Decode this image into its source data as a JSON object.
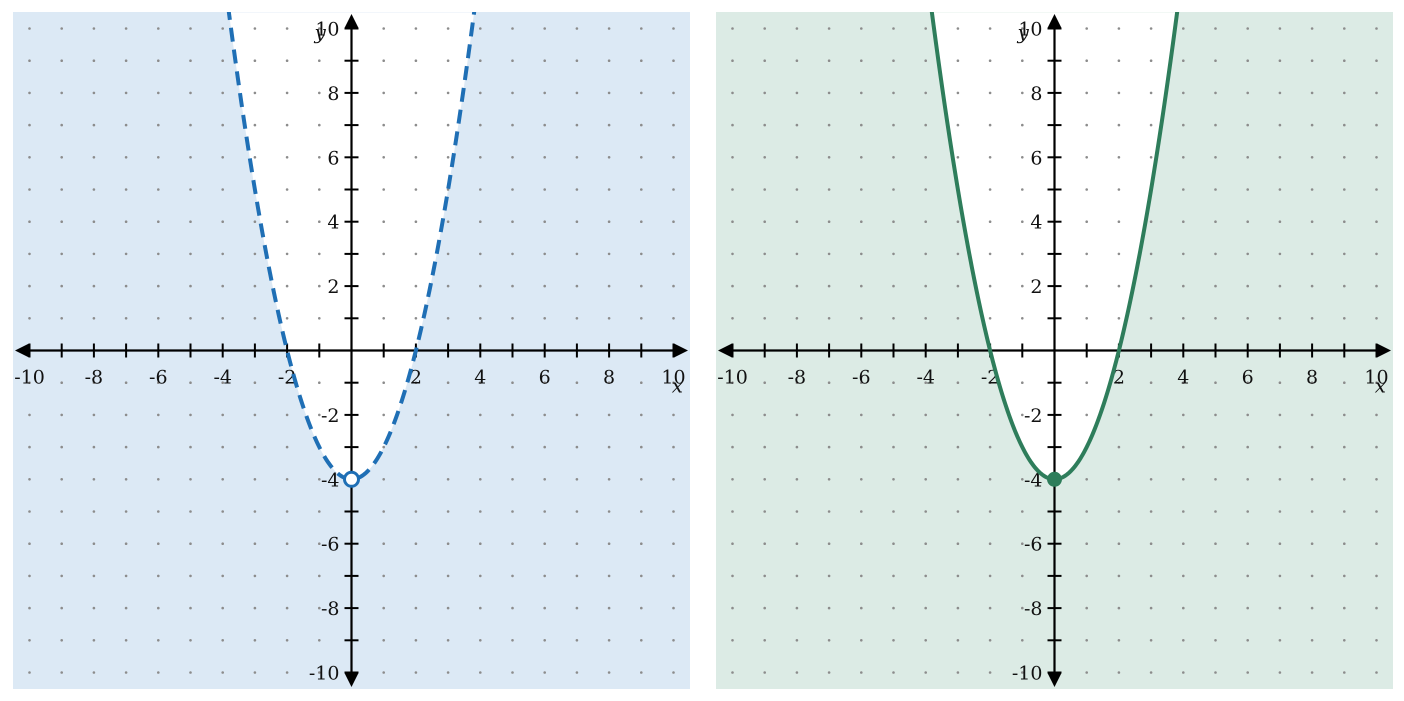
{
  "chart_data": [
    {
      "type": "line",
      "xlabel": "x",
      "ylabel": "y",
      "xlim": [
        -10.5,
        10.5
      ],
      "ylim": [
        -10.5,
        10.5
      ],
      "x_ticks": [
        -10,
        -8,
        -6,
        -4,
        -2,
        2,
        4,
        6,
        8,
        10
      ],
      "y_ticks": [
        -10,
        -8,
        -6,
        -4,
        -2,
        2,
        4,
        6,
        8,
        10
      ],
      "grid": "dots",
      "series": [
        {
          "function": "y = x^2 - 4",
          "line_style": "dashed",
          "color": "#1f6fb5",
          "x": [
            -3.8,
            -3.5,
            -3,
            -2.5,
            -2,
            -1.5,
            -1,
            -0.5,
            0,
            0.5,
            1,
            1.5,
            2,
            2.5,
            3,
            3.5,
            3.8
          ],
          "y": [
            10.44,
            8.25,
            5,
            2.25,
            0,
            -1.75,
            -3,
            -3.75,
            -4,
            -3.75,
            -3,
            -1.75,
            0,
            2.25,
            5,
            8.25,
            10.44
          ]
        }
      ],
      "vertex": {
        "x": 0,
        "y": -4,
        "marker": "open-circle"
      },
      "shaded_region": "outside",
      "shade_color": "#dce9f5"
    },
    {
      "type": "line",
      "xlabel": "x",
      "ylabel": "y",
      "xlim": [
        -10.5,
        10.5
      ],
      "ylim": [
        -10.5,
        10.5
      ],
      "x_ticks": [
        -10,
        -8,
        -6,
        -4,
        -2,
        2,
        4,
        6,
        8,
        10
      ],
      "y_ticks": [
        -10,
        -8,
        -6,
        -4,
        -2,
        2,
        4,
        6,
        8,
        10
      ],
      "grid": "dots",
      "series": [
        {
          "function": "y = x^2 - 4",
          "line_style": "solid",
          "color": "#2e7d5b",
          "x": [
            -3.8,
            -3.5,
            -3,
            -2.5,
            -2,
            -1.5,
            -1,
            -0.5,
            0,
            0.5,
            1,
            1.5,
            2,
            2.5,
            3,
            3.5,
            3.8
          ],
          "y": [
            10.44,
            8.25,
            5,
            2.25,
            0,
            -1.75,
            -3,
            -3.75,
            -4,
            -3.75,
            -3,
            -1.75,
            0,
            2.25,
            5,
            8.25,
            10.44
          ]
        }
      ],
      "vertex": {
        "x": 0,
        "y": -4,
        "marker": "filled-circle"
      },
      "shaded_region": "outside",
      "shade_color": "#dcebe5"
    }
  ]
}
